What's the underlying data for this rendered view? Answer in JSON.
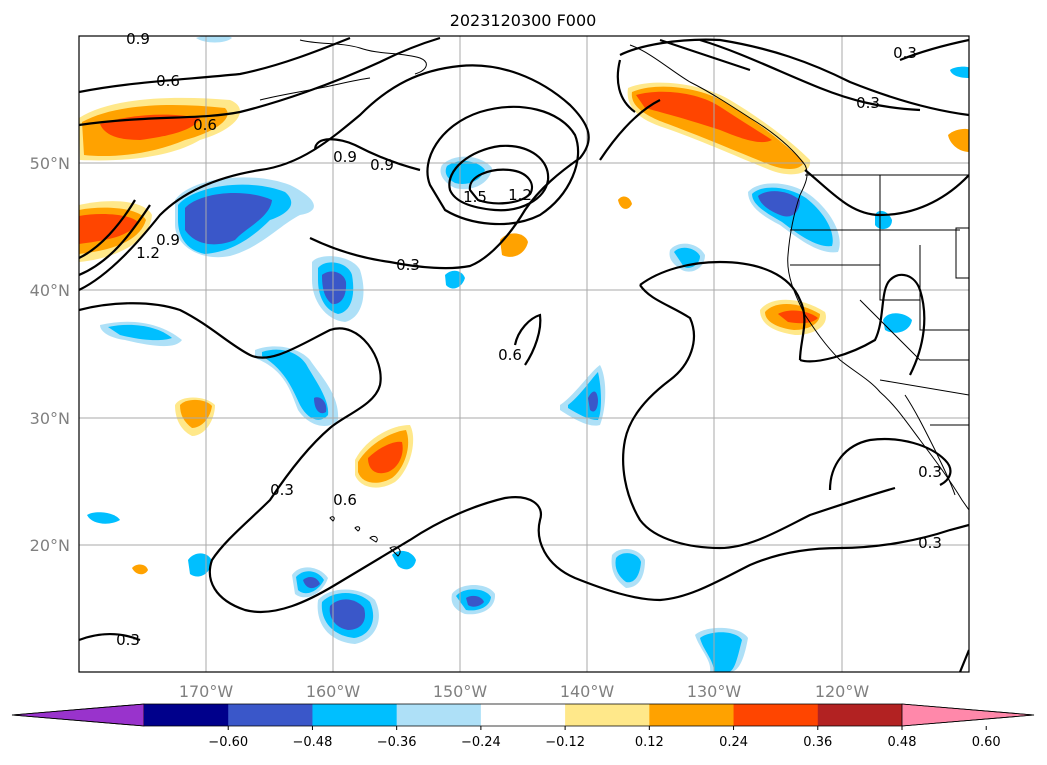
{
  "title": "2023120300 F000",
  "map": {
    "extent": {
      "lon": [
        -180,
        -110
      ],
      "lat": [
        10,
        60
      ]
    },
    "lat_labels": [
      {
        "value": 50,
        "text": "50°N"
      },
      {
        "value": 40,
        "text": "40°N"
      },
      {
        "value": 30,
        "text": "30°N"
      },
      {
        "value": 20,
        "text": "20°N"
      }
    ],
    "lon_labels": [
      {
        "value": -170,
        "text": "170°W"
      },
      {
        "value": -160,
        "text": "160°W"
      },
      {
        "value": -150,
        "text": "150°W"
      },
      {
        "value": -140,
        "text": "140°W"
      },
      {
        "value": -130,
        "text": "130°W"
      },
      {
        "value": -120,
        "text": "120°W"
      }
    ],
    "grid": true,
    "contour_labels": [
      "0.9",
      "0.6",
      "0.6",
      "0.9",
      "0.9",
      "1.5",
      "1.2",
      "1.2",
      "0.9",
      "0.3",
      "0.6",
      "0.3",
      "0.3",
      "0.6",
      "0.3",
      "0.3",
      "0.3",
      "0.3"
    ]
  },
  "colorbar": {
    "ticks": [
      "−0.60",
      "−0.48",
      "−0.36",
      "−0.24",
      "−0.12",
      "0.12",
      "0.24",
      "0.36",
      "0.48",
      "0.60"
    ],
    "colors": [
      "#9933cc",
      "#00008b",
      "#3a57c9",
      "#00bfff",
      "#aee0f7",
      "#ffffff",
      "#ffe88a",
      "#ffa200",
      "#ff4500",
      "#b22222",
      "#ff88aa"
    ],
    "extend": "both"
  }
}
